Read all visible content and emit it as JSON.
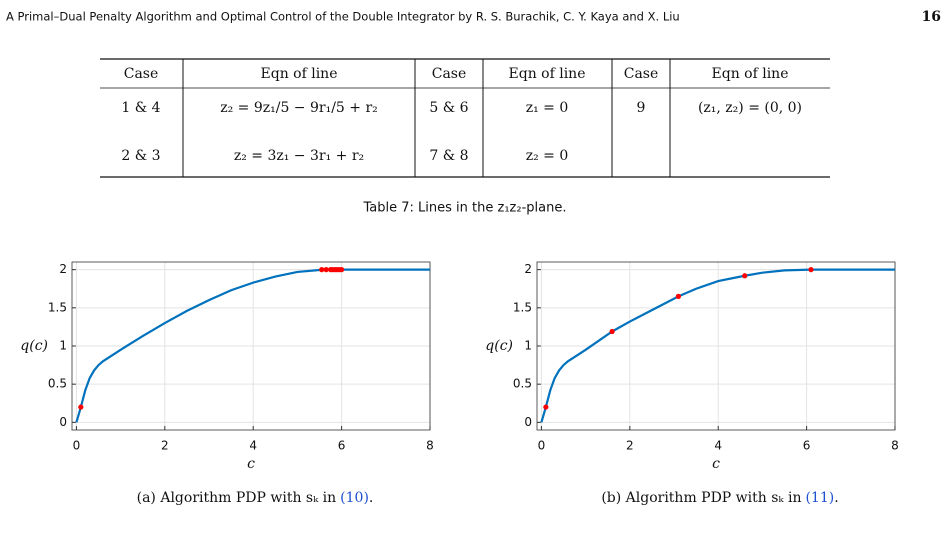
{
  "header": {
    "title": "A Primal–Dual Penalty Algorithm and Optimal Control of the Double Integrator  by R. S. Burachik, C. Y. Kaya and X. Liu",
    "page": "16"
  },
  "table": {
    "headers": [
      "Case",
      "Eqn of line",
      "Case",
      "Eqn of line",
      "Case",
      "Eqn of line"
    ],
    "rows": [
      [
        "1 & 4",
        "z₂ = 9z₁/5 − 9r₁/5 + r₂",
        "5 & 6",
        "z₁ = 0",
        "9",
        "(z₁, z₂) = (0, 0)"
      ],
      [
        "2 & 3",
        "z₂ = 3z₁ − 3r₁ + r₂",
        "7 & 8",
        "z₂ = 0"
      ]
    ],
    "caption": "Table 7: Lines in the z₁z₂-plane."
  },
  "chart_data": [
    {
      "type": "line",
      "xlabel": "c",
      "ylabel": "q(c)",
      "caption": "(a) Algorithm PDP with sₖ in",
      "caption_ref": "(10)",
      "caption_end": ".",
      "xlim": [
        -0.1,
        8
      ],
      "ylim": [
        -0.1,
        2.1
      ],
      "xticks": [
        0,
        2,
        4,
        6,
        8
      ],
      "yticks": [
        0,
        0.5,
        1,
        1.5,
        2
      ],
      "grid": true,
      "series": [
        {
          "color": "#0072bd",
          "style": "line",
          "x": [
            0,
            0.1,
            0.2,
            0.3,
            0.4,
            0.5,
            0.6,
            1,
            1.5,
            2,
            2.5,
            3,
            3.5,
            4,
            4.5,
            5,
            5.6,
            6,
            7,
            8
          ],
          "values": [
            0,
            0.2,
            0.42,
            0.58,
            0.68,
            0.75,
            0.8,
            0.95,
            1.13,
            1.3,
            1.46,
            1.6,
            1.73,
            1.83,
            1.91,
            1.97,
            2,
            2,
            2,
            2
          ]
        },
        {
          "color": "#ff0000",
          "style": "markers",
          "x": [
            0.1,
            5.55,
            5.65,
            5.75,
            5.8,
            5.85,
            5.9,
            5.95,
            6
          ],
          "values": [
            0.2,
            2,
            2,
            2,
            2,
            2,
            2,
            2,
            2
          ]
        }
      ]
    },
    {
      "type": "line",
      "xlabel": "c",
      "ylabel": "q(c)",
      "caption": "(b) Algorithm PDP with sₖ in",
      "caption_ref": "(11)",
      "caption_end": ".",
      "xlim": [
        -0.1,
        8
      ],
      "ylim": [
        -0.1,
        2.1
      ],
      "xticks": [
        0,
        2,
        4,
        6,
        8
      ],
      "yticks": [
        0,
        0.5,
        1,
        1.5,
        2
      ],
      "grid": true,
      "series": [
        {
          "color": "#0072bd",
          "style": "line",
          "x": [
            0,
            0.1,
            0.2,
            0.3,
            0.4,
            0.5,
            0.6,
            1,
            1.6,
            2,
            2.5,
            3.1,
            3.5,
            4,
            4.6,
            5,
            5.5,
            6.1,
            7,
            8
          ],
          "values": [
            0,
            0.2,
            0.42,
            0.58,
            0.68,
            0.75,
            0.8,
            0.95,
            1.19,
            1.32,
            1.47,
            1.65,
            1.75,
            1.85,
            1.92,
            1.96,
            1.99,
            2,
            2,
            2
          ]
        },
        {
          "color": "#ff0000",
          "style": "markers",
          "x": [
            0.1,
            1.6,
            3.1,
            4.6,
            6.1
          ],
          "values": [
            0.2,
            1.19,
            1.65,
            1.92,
            2
          ]
        }
      ]
    }
  ]
}
